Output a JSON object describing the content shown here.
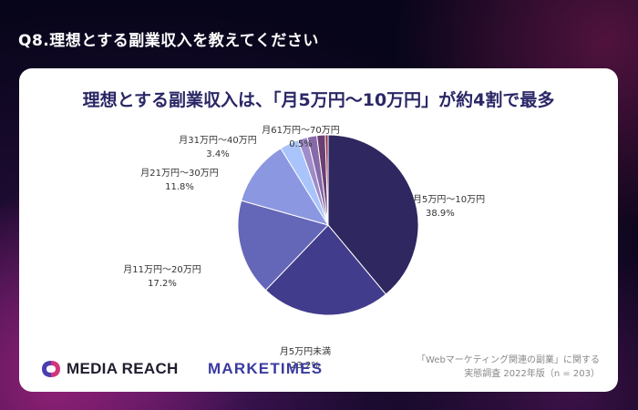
{
  "header": {
    "title": "Q8.理想とする副業収入を教えてください"
  },
  "chart_data": {
    "type": "pie",
    "title": "理想とする副業収入は、「月5万円〜10万円」が約4割で最多",
    "unit": "%",
    "slices": [
      {
        "label": "月5万円〜10万円",
        "value": 38.9,
        "color": "#2e2760"
      },
      {
        "label": "月5万円未満",
        "value": 23.2,
        "color": "#423c8c"
      },
      {
        "label": "月11万円〜20万円",
        "value": 17.2,
        "color": "#6466b8"
      },
      {
        "label": "月21万円〜30万円",
        "value": 11.8,
        "color": "#8b97e0"
      },
      {
        "label": "月31万円〜40万円",
        "value": 3.4,
        "color": "#a9c4fb"
      },
      {
        "label": "",
        "value": 1.7,
        "color": "#9d8cc8"
      },
      {
        "label": "",
        "value": 1.7,
        "color": "#866aa8"
      },
      {
        "label": "",
        "value": 1.5,
        "color": "#6a3f72"
      },
      {
        "label": "月61万円〜70万円",
        "value": 0.5,
        "color": "#8c2a4a"
      }
    ]
  },
  "logos": {
    "media_reach": "MEDIA REACH",
    "marketimes": "MARKETIMES"
  },
  "source": {
    "line1": "「Webマーケティング関連の副業」に関する",
    "line2": "実態調査 2022年版（n = 203）"
  }
}
